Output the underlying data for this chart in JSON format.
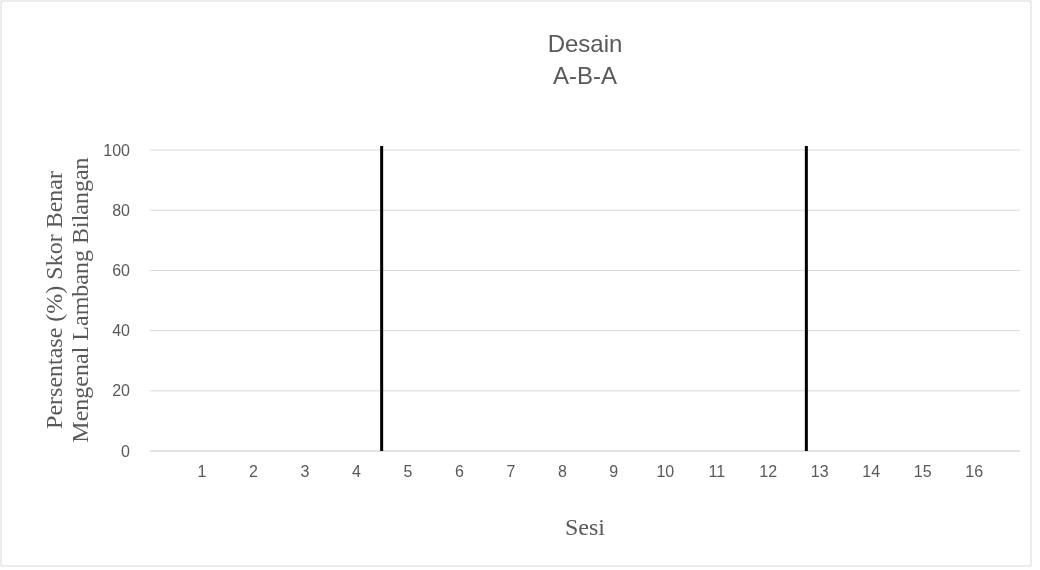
{
  "chart_data": {
    "type": "line",
    "title": "Desain",
    "subtitle": "A-B-A",
    "xlabel": "Sesi",
    "ylabel": "Persentase (%) Skor Benar\nMengenal Lambang Bilangan",
    "xlim": [
      0,
      16.9
    ],
    "xticks": [
      1,
      2,
      3,
      4,
      5,
      6,
      7,
      8,
      9,
      10,
      11,
      12,
      13,
      14,
      15,
      16
    ],
    "ylim": [
      0,
      100
    ],
    "yticks": [
      0,
      20,
      40,
      60,
      80,
      100
    ],
    "grid": "y",
    "ref_lines": [
      {
        "axis": "x",
        "value": 4.5,
        "color": "#000000"
      },
      {
        "axis": "x",
        "value": 12.75,
        "color": "#000000"
      }
    ]
  }
}
